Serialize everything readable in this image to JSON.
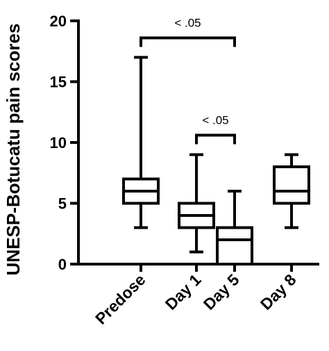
{
  "chart_data": {
    "type": "boxplot",
    "ylabel": "UNESP-Botucatu pain scores",
    "ylim": [
      0,
      20
    ],
    "yticks": [
      0,
      5,
      10,
      15,
      20
    ],
    "categories": [
      "Predose",
      "Day 1",
      "Day 5",
      "Day 8"
    ],
    "boxes": [
      {
        "category": "Predose",
        "min": 3,
        "q1": 5,
        "median": 6,
        "q3": 7,
        "max": 17
      },
      {
        "category": "Day 1",
        "min": 1,
        "q1": 3,
        "median": 4,
        "q3": 5,
        "max": 9
      },
      {
        "category": "Day 5",
        "min": 0,
        "q1": 0,
        "median": 2,
        "q3": 3,
        "max": 6
      },
      {
        "category": "Day 8",
        "min": 3,
        "q1": 5,
        "median": 6,
        "q3": 8,
        "max": 9
      }
    ],
    "annotations": [
      {
        "from": "Predose",
        "to": "Day 5",
        "y": 18.6,
        "label": "< .05"
      },
      {
        "from": "Day 1",
        "to": "Day 5",
        "y": 10.6,
        "label": "< .05"
      }
    ],
    "grid": false,
    "legend": "none",
    "colors": {
      "stroke": "#000000",
      "fill": "#ffffff"
    }
  }
}
